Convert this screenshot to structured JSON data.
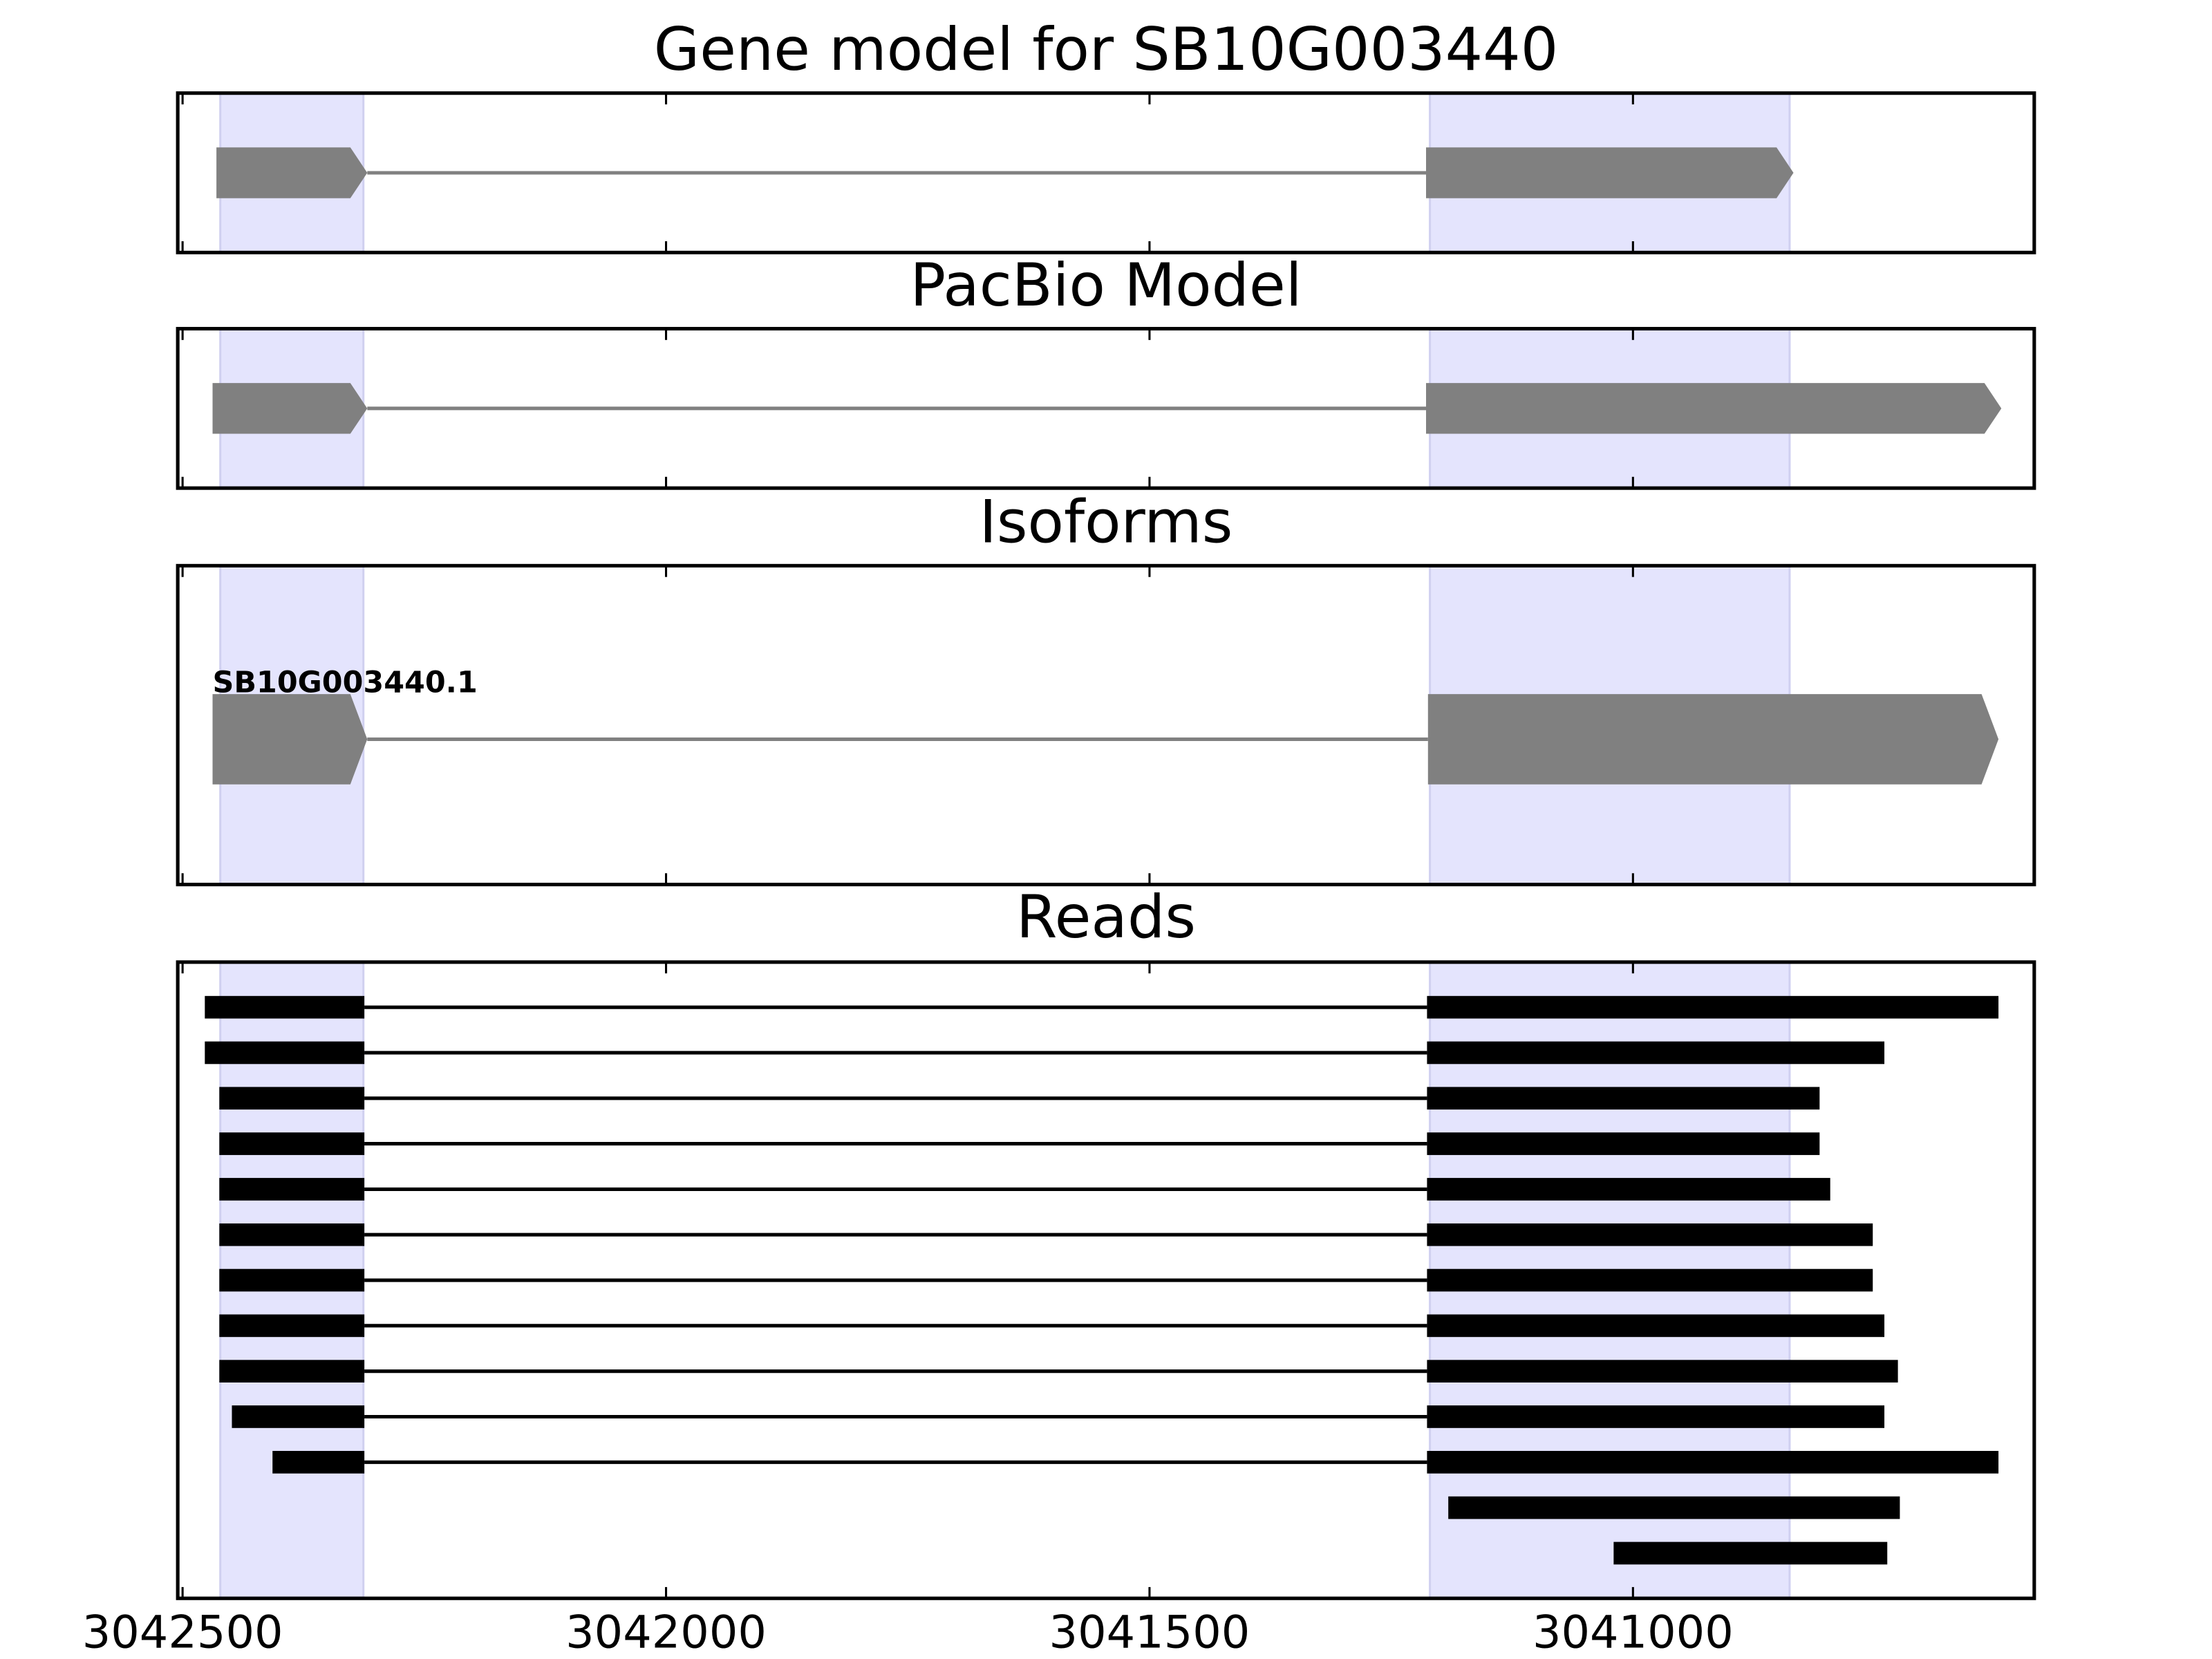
{
  "chart_data": {
    "type": "gene-track",
    "xlim": [
      3042505,
      3040585
    ],
    "xticks": [
      3042500,
      3042000,
      3041500,
      3041000
    ],
    "strand": "-",
    "highlights": [
      [
        3042461,
        3042313
      ],
      [
        3041210,
        3040838
      ]
    ],
    "panels": [
      {
        "title": "Gene model for SB10G003440",
        "exons": [
          [
            3042465,
            3042309
          ],
          [
            3041214,
            3040834
          ]
        ]
      },
      {
        "title": "PacBio Model",
        "exons": [
          [
            3042469,
            3042309
          ],
          [
            3041214,
            3040619
          ]
        ]
      },
      {
        "title": "Isoforms",
        "isoforms": [
          {
            "name": "SB10G003440.1",
            "exons": [
              [
                3042469,
                3042309
              ],
              [
                3041212,
                3040622
              ]
            ]
          }
        ]
      },
      {
        "title": "Reads",
        "reads": [
          [
            [
              3042477,
              3042312
            ],
            [
              3041213,
              3040622
            ]
          ],
          [
            [
              3042477,
              3042312
            ],
            [
              3041213,
              3040740
            ]
          ],
          [
            [
              3042462,
              3042312
            ],
            [
              3041213,
              3040807
            ]
          ],
          [
            [
              3042462,
              3042312
            ],
            [
              3041213,
              3040807
            ]
          ],
          [
            [
              3042462,
              3042312
            ],
            [
              3041213,
              3040796
            ]
          ],
          [
            [
              3042462,
              3042312
            ],
            [
              3041213,
              3040752
            ]
          ],
          [
            [
              3042462,
              3042312
            ],
            [
              3041213,
              3040752
            ]
          ],
          [
            [
              3042462,
              3042312
            ],
            [
              3041213,
              3040740
            ]
          ],
          [
            [
              3042462,
              3042312
            ],
            [
              3041213,
              3040726
            ]
          ],
          [
            [
              3042449,
              3042312
            ],
            [
              3041213,
              3040740
            ]
          ],
          [
            [
              3042407,
              3042312
            ],
            [
              3041213,
              3040622
            ]
          ],
          [
            [
              3041191,
              3040724
            ]
          ],
          [
            [
              3041020,
              3040737
            ]
          ]
        ]
      }
    ]
  }
}
